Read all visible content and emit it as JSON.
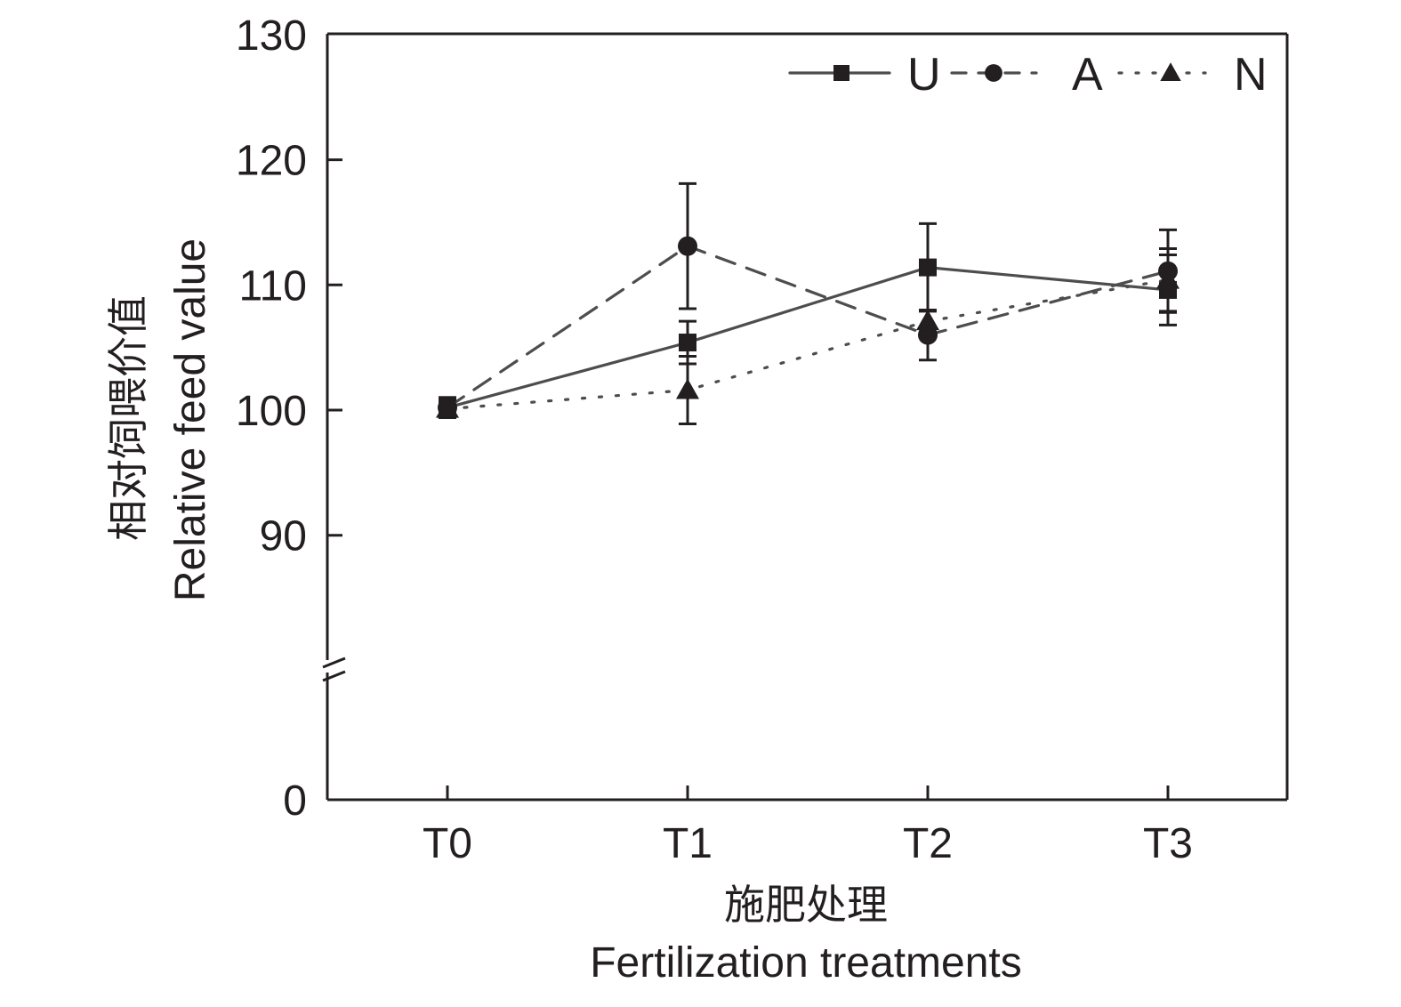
{
  "chart_data": {
    "type": "line",
    "title": "",
    "xlabel": "施肥处理\nFertilization treatments",
    "xlabel_cn": "施肥处理",
    "xlabel_en": "Fertilization treatments",
    "ylabel_cn": "相对饲喂价值",
    "ylabel_en": "Relative feed value",
    "categories": [
      "T0",
      "T1",
      "T2",
      "T3"
    ],
    "y_axis": {
      "ticks": [
        0,
        90,
        100,
        110,
        120,
        130
      ],
      "tick_labels": [
        "0",
        "90",
        "100",
        "110",
        "120",
        "130"
      ],
      "range": [
        0,
        130
      ],
      "broken": true,
      "break_between": [
        0,
        80
      ]
    },
    "grid": false,
    "legend": {
      "placement": "top-right",
      "orientation": "horizontal"
    },
    "series": [
      {
        "name": "U",
        "line_style": "solid",
        "marker": "square",
        "values": [
          100.2,
          105.4,
          111.4,
          109.6
        ],
        "errors": [
          0.8,
          1.7,
          3.5,
          2.8
        ]
      },
      {
        "name": "A",
        "line_style": "dashed",
        "marker": "circle",
        "values": [
          100.2,
          113.1,
          106.0,
          111.1
        ],
        "errors": [
          0.8,
          5.0,
          2.0,
          3.3
        ]
      },
      {
        "name": "N",
        "line_style": "dotted",
        "marker": "triangle",
        "values": [
          100.1,
          101.6,
          107.1,
          110.4
        ],
        "errors": [
          0.7,
          2.7,
          0.9,
          2.5
        ]
      }
    ],
    "colors": {
      "line": "#4d4d4f",
      "marker": "#231f20",
      "axis": "#231f20"
    }
  }
}
